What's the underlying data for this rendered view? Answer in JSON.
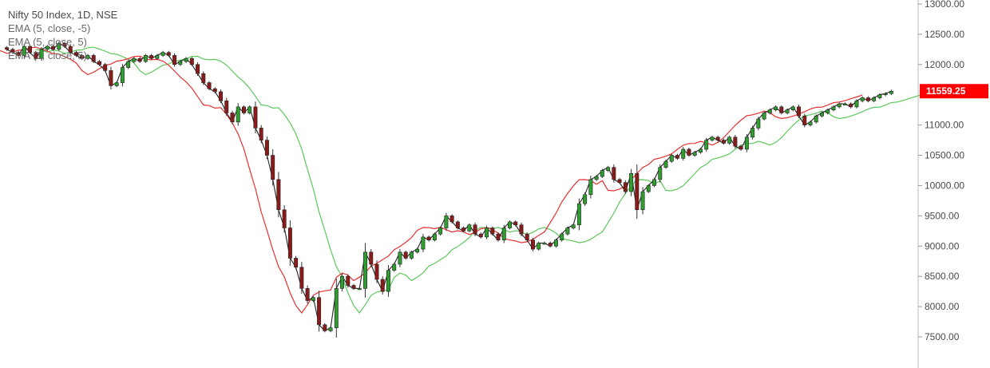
{
  "chart_data": {
    "type": "candlestick",
    "legend": {
      "title": "Nifty 50 Index, 1D, NSE",
      "series_labels": [
        "EMA (5, close, -5)",
        "EMA (5, close, 5)",
        "EMA (1, close, 5)"
      ]
    },
    "ylim": [
      7250,
      13100
    ],
    "y_ticks": [
      {
        "value": 13000,
        "label": "13000.00"
      },
      {
        "value": 12500,
        "label": "12500.00"
      },
      {
        "value": 12000,
        "label": "12000.00"
      },
      {
        "value": 11000,
        "label": "11000.00"
      },
      {
        "value": 10500,
        "label": "10500.00"
      },
      {
        "value": 10000,
        "label": "10000.00"
      },
      {
        "value": 9500,
        "label": "9500.00"
      },
      {
        "value": 9000,
        "label": "9000.00"
      },
      {
        "value": 8500,
        "label": "8500.00"
      },
      {
        "value": 8000,
        "label": "8000.00"
      },
      {
        "value": 7500,
        "label": "7500.00"
      }
    ],
    "last_price": {
      "value": 11559.25,
      "label": "11559.25",
      "color": "#ff0000"
    },
    "colors": {
      "up": "#2e9e2e",
      "down": "#8b1a1a",
      "ema_minus5": "#e83030",
      "ema_plus5": "#5cc85c",
      "ema_1": "#222222",
      "wick": "#333333"
    },
    "closes": [
      12250,
      12200,
      12150,
      12300,
      12200,
      12100,
      12250,
      12300,
      12250,
      12350,
      12300,
      12200,
      12150,
      12100,
      12150,
      12050,
      12000,
      11900,
      11650,
      11700,
      11950,
      12050,
      12100,
      12050,
      12150,
      12100,
      12150,
      12200,
      12150,
      12000,
      12050,
      12100,
      12000,
      11850,
      11700,
      11600,
      11550,
      11400,
      11200,
      11050,
      11300,
      11200,
      11300,
      10950,
      10750,
      10500,
      10100,
      9600,
      9300,
      8800,
      8650,
      8300,
      8100,
      8150,
      7700,
      7600,
      7650,
      8300,
      8500,
      8350,
      8300,
      8300,
      8900,
      8700,
      8450,
      8250,
      8600,
      8700,
      8900,
      8800,
      8900,
      8950,
      9150,
      9100,
      9200,
      9300,
      9500,
      9400,
      9300,
      9250,
      9350,
      9200,
      9150,
      9300,
      9200,
      9100,
      9300,
      9400,
      9350,
      9200,
      9100,
      8950,
      9050,
      9050,
      9000,
      9100,
      9200,
      9300,
      9350,
      9700,
      9850,
      10100,
      10150,
      10250,
      10300,
      10100,
      10050,
      9900,
      10200,
      9600,
      9900,
      10000,
      10100,
      10300,
      10400,
      10500,
      10450,
      10600,
      10500,
      10550,
      10600,
      10750,
      10800,
      10750,
      10700,
      10800,
      10650,
      10600,
      10800,
      10950,
      11100,
      11200,
      11250,
      11300,
      11200,
      11250,
      11300,
      11150,
      11000,
      11050,
      11150,
      11200,
      11250,
      11300,
      11350,
      11350,
      11300,
      11400,
      11450,
      11400,
      11450,
      11500,
      11520,
      11559.25
    ]
  }
}
